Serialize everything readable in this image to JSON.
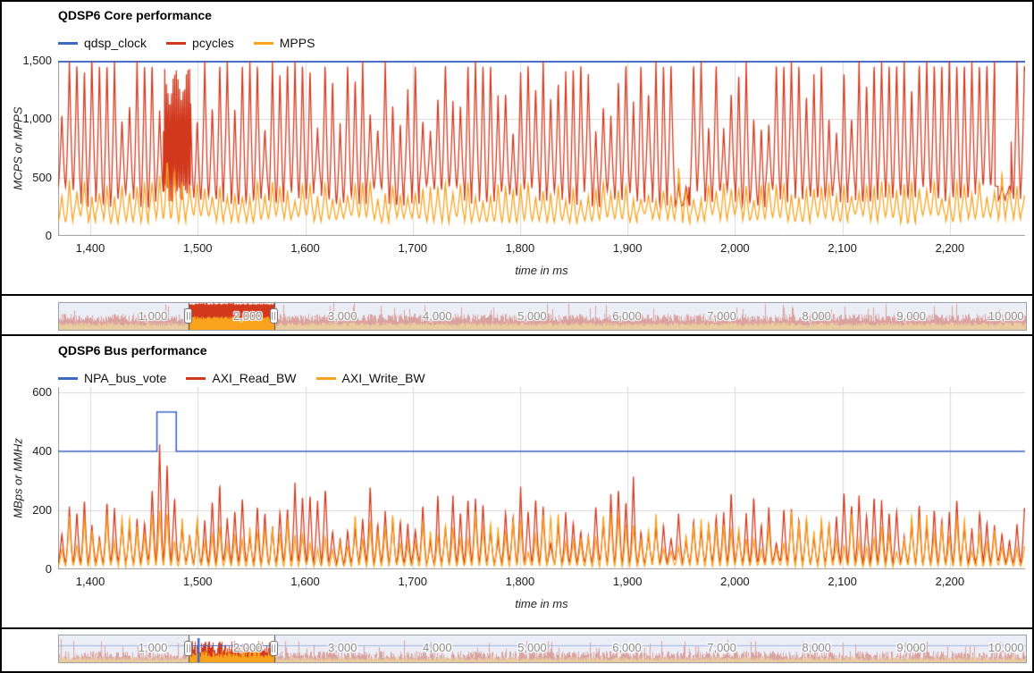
{
  "colors": {
    "blue": "#3f68c6",
    "red": "#d2381c",
    "orange": "#f9a21b",
    "grid": "#d9d9d9",
    "axis_line": "#9b9b9b",
    "tick_text": "#1a1a1a",
    "selector_label": "#8a8a8a",
    "selector_overlay": "rgba(222,228,240,0.62)",
    "selector_edge": "#4a4a4a"
  },
  "chart_data": [
    {
      "type": "line",
      "title": "QDSP6 Core performance",
      "xlabel": "time in ms",
      "ylabel": "MCPS or MPPS",
      "x_range": [
        1370,
        2270
      ],
      "y_range": [
        0,
        1500
      ],
      "x_ticks": [
        {
          "v": 1400,
          "label": "1,400"
        },
        {
          "v": 1500,
          "label": "1,500"
        },
        {
          "v": 1600,
          "label": "1,600"
        },
        {
          "v": 1700,
          "label": "1,700"
        },
        {
          "v": 1800,
          "label": "1,800"
        },
        {
          "v": 1900,
          "label": "1,900"
        },
        {
          "v": 2000,
          "label": "2,000"
        },
        {
          "v": 2100,
          "label": "2,100"
        },
        {
          "v": 2200,
          "label": "2,200"
        }
      ],
      "y_ticks": [
        {
          "v": 0,
          "label": "0"
        },
        {
          "v": 500,
          "label": "500"
        },
        {
          "v": 1000,
          "label": "1,000"
        },
        {
          "v": 1500,
          "label": "1,500"
        }
      ],
      "series": [
        {
          "name": "qdsp_clock",
          "color_key": "blue",
          "kind": "constant",
          "value": 1500
        },
        {
          "name": "pcycles",
          "color_key": "red",
          "kind": "oscillation",
          "seed": 11,
          "period_ms": 7,
          "base": 340,
          "peak_min": 880,
          "peak_max": 1500,
          "peak_clip_prob": 0.55,
          "dense_windows": [
            [
              1468,
              1493
            ]
          ],
          "dense_factor": 0.22,
          "quiet_windows": [
            [
              1944,
              1957
            ],
            [
              2242,
              2257
            ]
          ],
          "quiet_peak": 430
        },
        {
          "name": "MPPS",
          "color_key": "orange",
          "kind": "oscillation",
          "seed": 77,
          "period_ms": 7,
          "base": 150,
          "peak_min": 300,
          "peak_max": 480,
          "gauss": [
            {
              "c": 1473,
              "s": 20,
              "p": 700
            },
            {
              "c": 1950,
              "s": 6,
              "p": 745
            },
            {
              "c": 2249,
              "s": 11,
              "p": 620
            }
          ]
        }
      ]
    },
    {
      "type": "line",
      "title": "QDSP6 Bus performance",
      "xlabel": "time in ms",
      "ylabel": "MBps or MMHz",
      "x_range": [
        1370,
        2270
      ],
      "y_range": [
        0,
        618
      ],
      "x_ticks": [
        {
          "v": 1400,
          "label": "1,400"
        },
        {
          "v": 1500,
          "label": "1,500"
        },
        {
          "v": 1600,
          "label": "1,600"
        },
        {
          "v": 1700,
          "label": "1,700"
        },
        {
          "v": 1800,
          "label": "1,800"
        },
        {
          "v": 1900,
          "label": "1,900"
        },
        {
          "v": 2000,
          "label": "2,000"
        },
        {
          "v": 2100,
          "label": "2,100"
        },
        {
          "v": 2200,
          "label": "2,200"
        }
      ],
      "y_ticks": [
        {
          "v": 0,
          "label": "0"
        },
        {
          "v": 200,
          "label": "200"
        },
        {
          "v": 400,
          "label": "400"
        },
        {
          "v": 600,
          "label": "600"
        }
      ],
      "series": [
        {
          "name": "NPA_bus_vote",
          "color_key": "blue",
          "kind": "step",
          "base": 400,
          "segments": [
            {
              "window": [
                1462,
                1480
              ],
              "value": 533
            }
          ]
        },
        {
          "name": "AXI_Read_BW",
          "color_key": "red",
          "kind": "oscillation",
          "seed": 21,
          "period_ms": 7,
          "base": 25,
          "peak_min": 90,
          "peak_max": 260,
          "spike_prob": 0.04,
          "spike_max": 300,
          "gauss": [
            {
              "c": 1468,
              "s": 15,
              "p": 452
            },
            {
              "c": 1520,
              "s": 3,
              "p": 330
            },
            {
              "c": 1620,
              "s": 3,
              "p": 350
            },
            {
              "c": 1723,
              "s": 3,
              "p": 312
            },
            {
              "c": 1905,
              "s": 4,
              "p": 338
            },
            {
              "c": 2126,
              "s": 3,
              "p": 328
            },
            {
              "c": 2230,
              "s": 4,
              "p": 350
            }
          ]
        },
        {
          "name": "AXI_Write_BW",
          "color_key": "orange",
          "kind": "oscillation",
          "seed": 33,
          "period_ms": 7,
          "base": 12,
          "peak_min": 60,
          "peak_max": 200,
          "gauss": [
            {
              "c": 1468,
              "s": 13,
              "p": 232
            }
          ]
        }
      ]
    }
  ],
  "range_selectors": [
    {
      "x_range": [
        0,
        10200
      ],
      "window": [
        1370,
        2270
      ],
      "seed": 5,
      "labels": [
        {
          "v": 1000,
          "label": "1,000"
        },
        {
          "v": 2000,
          "label": "2,000"
        },
        {
          "v": 3000,
          "label": "3,000"
        },
        {
          "v": 4000,
          "label": "4,000"
        },
        {
          "v": 5000,
          "label": "5,000"
        },
        {
          "v": 6000,
          "label": "6,000"
        },
        {
          "v": 7000,
          "label": "7,000"
        },
        {
          "v": 8000,
          "label": "8,000"
        },
        {
          "v": 9000,
          "label": "9,000"
        },
        {
          "v": 10000,
          "label": "10,000"
        }
      ],
      "red": {
        "out": [
          0.3,
          0.6
        ],
        "spike_p": 0.05,
        "spike": [
          0.72,
          1.0
        ],
        "win": [
          0.93,
          1.0
        ]
      },
      "orange": {
        "out": [
          0.15,
          0.28
        ],
        "win": [
          0.4,
          0.5
        ]
      }
    },
    {
      "x_range": [
        0,
        10200
      ],
      "window": [
        1370,
        2270
      ],
      "seed": 9,
      "labels": [
        {
          "v": 1000,
          "label": "1,000"
        },
        {
          "v": 2000,
          "label": "2,000"
        },
        {
          "v": 3000,
          "label": "3,000"
        },
        {
          "v": 4000,
          "label": "4,000"
        },
        {
          "v": 5000,
          "label": "5,000"
        },
        {
          "v": 6000,
          "label": "6,000"
        },
        {
          "v": 7000,
          "label": "7,000"
        },
        {
          "v": 8000,
          "label": "8,000"
        },
        {
          "v": 9000,
          "label": "9,000"
        },
        {
          "v": 10000,
          "label": "10,000"
        }
      ],
      "red": {
        "out": [
          0.1,
          0.42
        ],
        "spike_p": 0.07,
        "spike": [
          0.5,
          0.85
        ],
        "win": [
          0.3,
          0.8
        ]
      },
      "orange": {
        "out": [
          0.07,
          0.2
        ],
        "win": [
          0.18,
          0.45
        ]
      },
      "blue": {
        "level": 400,
        "max": 620,
        "spike_x": 1470,
        "spike_top_frac": 0.1
      }
    }
  ]
}
